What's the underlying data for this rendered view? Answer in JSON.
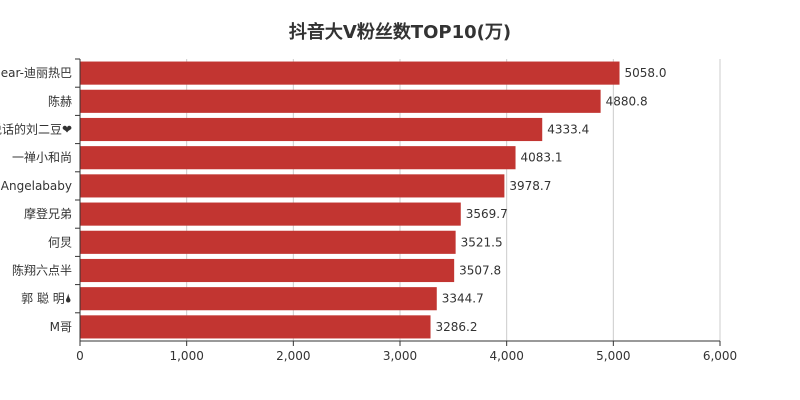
{
  "chart_data": {
    "type": "bar",
    "orientation": "horizontal",
    "title": "抖音大V粉丝数TOP10(万)",
    "categories": [
      "Dear-迪丽热巴",
      "陈赫",
      "会说话的刘二豆❤",
      "一禅小和尚",
      "Angelababy",
      "摩登兄弟",
      "何炅",
      "陈翔六点半",
      "郭 聪 明🌢",
      "M哥"
    ],
    "values": [
      5058.0,
      4880.8,
      4333.4,
      4083.1,
      3978.7,
      3569.7,
      3521.5,
      3507.8,
      3344.7,
      3286.2
    ],
    "value_labels": [
      "5058.0",
      "4880.8",
      "4333.4",
      "4083.1",
      "3978.7",
      "3569.7",
      "3521.5",
      "3507.8",
      "3344.7",
      "3286.2"
    ],
    "xlim": [
      0,
      6000
    ],
    "xticks": [
      0,
      1000,
      2000,
      3000,
      4000,
      5000,
      6000
    ],
    "xtick_labels": [
      "0",
      "1,000",
      "2,000",
      "3,000",
      "4,000",
      "5,000",
      "6,000"
    ],
    "xlabel": "",
    "ylabel": "",
    "grid": true,
    "bar_color": "#c23531"
  }
}
